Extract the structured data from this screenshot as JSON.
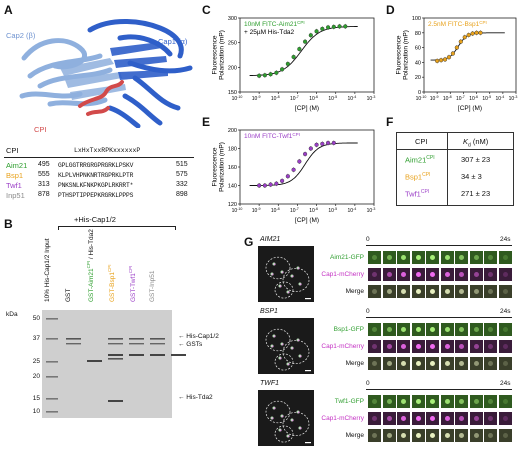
{
  "panel_letters": {
    "A": "A",
    "B": "B",
    "C": "C",
    "D": "D",
    "E": "E",
    "F": "F",
    "G": "G"
  },
  "colors": {
    "aim21": "#2e9e2e",
    "bsp1": "#e8a21c",
    "twf1": "#9b3fc7",
    "inp51": "#8a8a8a",
    "cap1": "#2f5fc9",
    "cap2": "#8fb0de",
    "cpi": "#d24a4a"
  },
  "panel_a": {
    "cap2_label": "Cap2 (β)",
    "cap1_label": "Cap1 (α)",
    "cpi_label": "CPI",
    "header_cpi": "CPI",
    "consensus": "LxHxTxxRPKxxxxxxP",
    "rows": [
      {
        "name": "Aim21",
        "start": "495",
        "seq": "GPLGGTRRGRGPRGRKLPSKV",
        "end": "515"
      },
      {
        "name": "Bsp1",
        "start": "555",
        "seq": "KLPLVHPNKNRTRGPRKLPTR",
        "end": "575"
      },
      {
        "name": "Twf1",
        "start": "313",
        "seq": "PNKSNLKFNKPKGPLRKRRT*",
        "end": "332"
      },
      {
        "name": "Inp51",
        "start": "878",
        "seq": "PTHSPTIPPEPKRGRKLPPPS",
        "end": "898"
      }
    ]
  },
  "panel_b": {
    "top_label": "+His-Cap1/2",
    "ladder_label": "kDa",
    "markers": [
      "50",
      "37",
      "25",
      "20",
      "15",
      "10"
    ],
    "lanes": [
      {
        "label": "10% His-Cap1/2 Input",
        "color": "#111111"
      },
      {
        "label": "GST",
        "color": "#111111"
      },
      {
        "label": "GST-Aim21",
        "label_cpi": "CPI",
        "label_tail": " / His-Tda2",
        "color": "#2e9e2e"
      },
      {
        "label": "GST-Bsp1",
        "label_cpi": "CPI",
        "color": "#e8a21c"
      },
      {
        "label": "GST-Twf1",
        "label_cpi": "CPI",
        "color": "#9b3fc7"
      },
      {
        "label": "GST-Inp51",
        "color": "#8a8a8a"
      }
    ],
    "band_labels": [
      "His-Cap1/2",
      "GSTs",
      "His-Tda2"
    ]
  },
  "chart_data": [
    {
      "type": "scatter",
      "panel": "C",
      "title": "10nM FITC-Aim21",
      "title_sup": "CPI",
      "subtitle": "+ 25µM His-Tda2",
      "xlabel": "[CP] (M)",
      "ylabel": "Fluorescence Polarization (mP)",
      "xscale": "log",
      "xlim": [
        1e-10,
        0.001
      ],
      "ylim": [
        150,
        300
      ],
      "yticks": [
        150,
        200,
        250,
        300
      ],
      "fit": {
        "bottom": 183,
        "top": 283,
        "log_ec50": -6.8,
        "hill": 0.9
      },
      "series": [
        {
          "x_log": [
            -9,
            -8.7,
            -8.4,
            -8.1,
            -7.8,
            -7.5,
            -7.2,
            -6.9,
            -6.6,
            -6.3,
            -6.0,
            -5.7,
            -5.4,
            -5.1,
            -4.8,
            -4.5
          ],
          "values": [
            183,
            184,
            186,
            189,
            196,
            207,
            221,
            237,
            252,
            265,
            273,
            278,
            281,
            282,
            283,
            283
          ]
        }
      ]
    },
    {
      "type": "scatter",
      "panel": "D",
      "title": "2.5nM FITC-Bsp1",
      "title_sup": "CPI",
      "xlabel": "[CP] (M)",
      "ylabel": "Fluorescence Polarization (mP)",
      "xscale": "log",
      "xlim": [
        1e-10,
        0.001
      ],
      "ylim": [
        0,
        100
      ],
      "yticks": [
        0,
        20,
        40,
        60,
        80,
        100
      ],
      "fit": {
        "bottom": 43,
        "top": 80,
        "log_ec50": -7.4,
        "hill": 1.3
      },
      "series": [
        {
          "x_log": [
            -9,
            -8.7,
            -8.4,
            -8.1,
            -7.8,
            -7.5,
            -7.2,
            -6.9,
            -6.6,
            -6.3,
            -6.0,
            -5.7
          ],
          "values": [
            42,
            43,
            44,
            47,
            52,
            60,
            68,
            74,
            77,
            79,
            80,
            80
          ]
        }
      ]
    },
    {
      "type": "scatter",
      "panel": "E",
      "title": "10nM FITC-Twf1",
      "title_sup": "CPI",
      "xlabel": "[CP] (M)",
      "ylabel": "Fluorescence Polarization (mP)",
      "xscale": "log",
      "xlim": [
        1e-10,
        0.001
      ],
      "ylim": [
        120,
        200
      ],
      "yticks": [
        120,
        140,
        160,
        180,
        200
      ],
      "fit": {
        "bottom": 140,
        "top": 186,
        "log_ec50": -6.6,
        "hill": 1.2
      },
      "series": [
        {
          "x_log": [
            -9,
            -8.7,
            -8.4,
            -8.1,
            -7.8,
            -7.5,
            -7.2,
            -6.9,
            -6.6,
            -6.3,
            -6.0,
            -5.7,
            -5.4,
            -5.1
          ],
          "values": [
            140,
            140,
            141,
            142,
            145,
            150,
            157,
            166,
            174,
            180,
            184,
            185,
            186,
            186
          ]
        }
      ]
    }
  ],
  "panel_f": {
    "col1": "CPI",
    "col2_k": "K",
    "col2_sub": "d",
    "col2_unit": " (nM)",
    "rows": [
      {
        "name": "Aim21",
        "sup": "CPI",
        "value": "307 ± 23"
      },
      {
        "name": "Bsp1",
        "sup": "CPI",
        "value": "34 ± 3"
      },
      {
        "name": "Twf1",
        "sup": "CPI",
        "value": "271 ± 23"
      }
    ]
  },
  "panel_g": {
    "time_start": "0",
    "time_end": "24s",
    "blocks": [
      {
        "gene": "AIM21",
        "rows": [
          "Aim21-GFP",
          "Cap1-mCherry",
          "Merge"
        ]
      },
      {
        "gene": "BSP1",
        "rows": [
          "Bsp1-GFP",
          "Cap1-mCherry",
          "Merge"
        ]
      },
      {
        "gene": "TWF1",
        "rows": [
          "Twf1-GFP",
          "Cap1-mCherry",
          "Merge"
        ]
      }
    ]
  }
}
